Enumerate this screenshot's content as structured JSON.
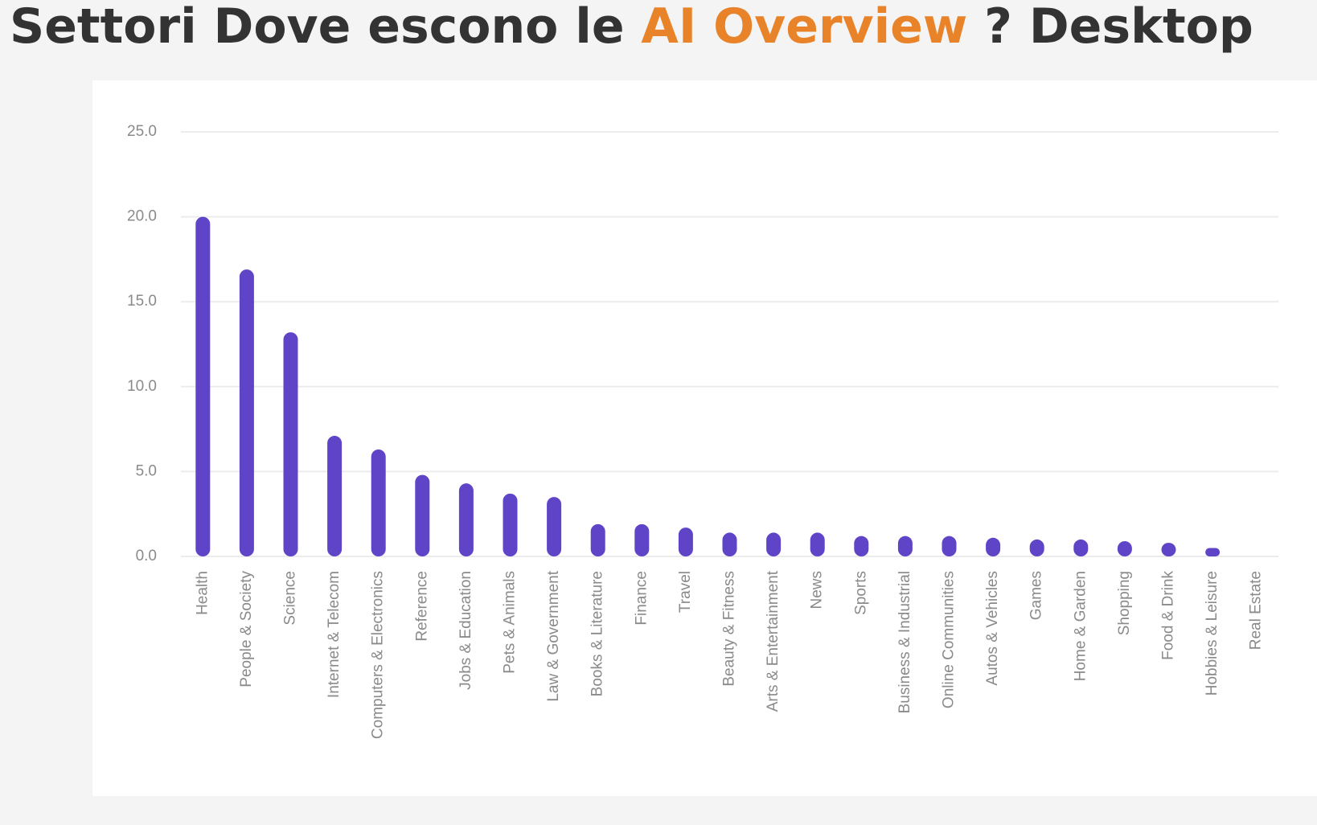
{
  "chart_data": {
    "type": "bar",
    "title_prefix": "Settori Dove escono le",
    "title_highlight": "AI Overview",
    "title_suffix": "? Desktop",
    "highlight_color": "#e8832a",
    "categories": [
      "Health",
      "People & Society",
      "Science",
      "Internet & Telecom",
      "Computers & Electronics",
      "Reference",
      "Jobs & Education",
      "Pets & Animals",
      "Law & Government",
      "Books & Literature",
      "Finance",
      "Travel",
      "Beauty & Fitness",
      "Arts & Entertainment",
      "News",
      "Sports",
      "Business & Industrial",
      "Online Communities",
      "Autos & Vehicles",
      "Games",
      "Home & Garden",
      "Shopping",
      "Food & Drink",
      "Hobbies & Leisure",
      "Real Estate"
    ],
    "values": [
      20.0,
      16.9,
      13.2,
      7.1,
      6.3,
      4.8,
      4.3,
      3.7,
      3.5,
      1.9,
      1.9,
      1.7,
      1.4,
      1.4,
      1.4,
      1.2,
      1.2,
      1.2,
      1.1,
      1.0,
      1.0,
      0.9,
      0.8,
      0.5,
      0
    ],
    "color": "#5f44c8",
    "ylim": [
      0,
      25
    ],
    "yticks": [
      {
        "value": 0,
        "label": "0.0"
      },
      {
        "value": 5,
        "label": "5.0"
      },
      {
        "value": 10,
        "label": "10.0"
      },
      {
        "value": 15,
        "label": "15.0"
      },
      {
        "value": 20,
        "label": "20.0"
      },
      {
        "value": 25,
        "label": "25.0"
      }
    ],
    "grid": true
  }
}
